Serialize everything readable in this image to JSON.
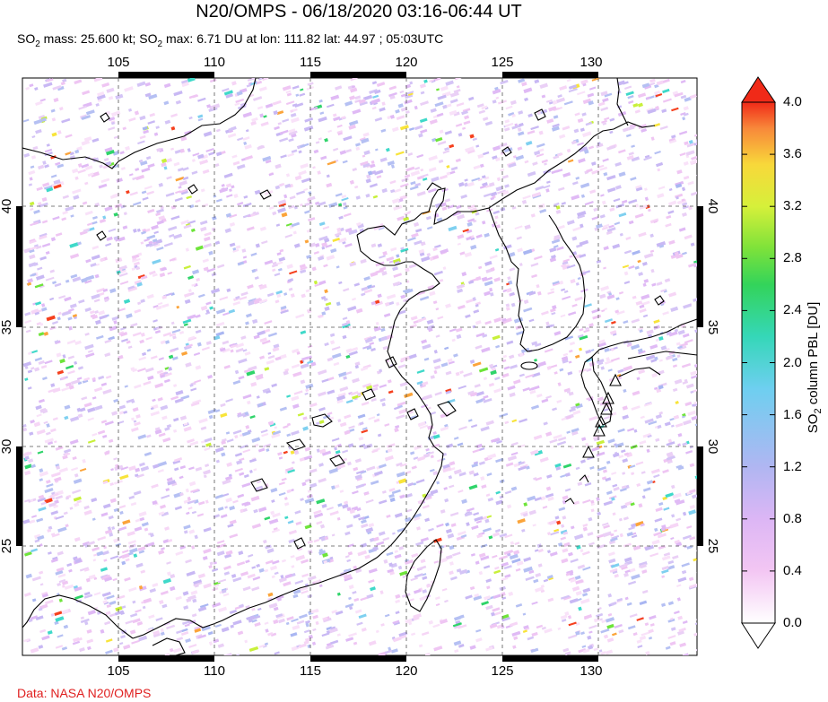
{
  "title": "N20/OMPS - 06/18/2020 03:16-06:44 UT",
  "subtitle": {
    "part1": "SO",
    "sub1": "2",
    "part2": " mass: 25.600 kt; SO",
    "sub2": "2",
    "part3": " max: 6.71 DU at lon: 111.82 lat: 44.97 ; 05:03UTC"
  },
  "credit": "Data: NASA N20/OMPS",
  "map": {
    "lon_range": [
      100,
      135
    ],
    "lat_range": [
      20,
      45
    ],
    "lon_ticks": [
      "105",
      "110",
      "115",
      "120",
      "125",
      "130"
    ],
    "lat_ticks": [
      "40",
      "35",
      "30",
      "25"
    ],
    "volcano_marker": "triangle-icon"
  },
  "colorbar": {
    "title_part1": "SO",
    "title_sub": "2",
    "title_part2": " column PBL [DU]",
    "ticks": [
      "4.0",
      "3.6",
      "3.2",
      "2.8",
      "2.4",
      "2.0",
      "1.6",
      "1.2",
      "0.8",
      "0.4",
      "0.0"
    ],
    "colors": [
      "#ffffff",
      "#f2c4f2",
      "#d7b4f4",
      "#a9b6f2",
      "#7fd0f0",
      "#3fd9c9",
      "#2fd46a",
      "#6ee43a",
      "#c8f03a",
      "#f8e43a",
      "#fba43a",
      "#f5401e"
    ],
    "min": 0.0,
    "max": 4.0
  }
}
